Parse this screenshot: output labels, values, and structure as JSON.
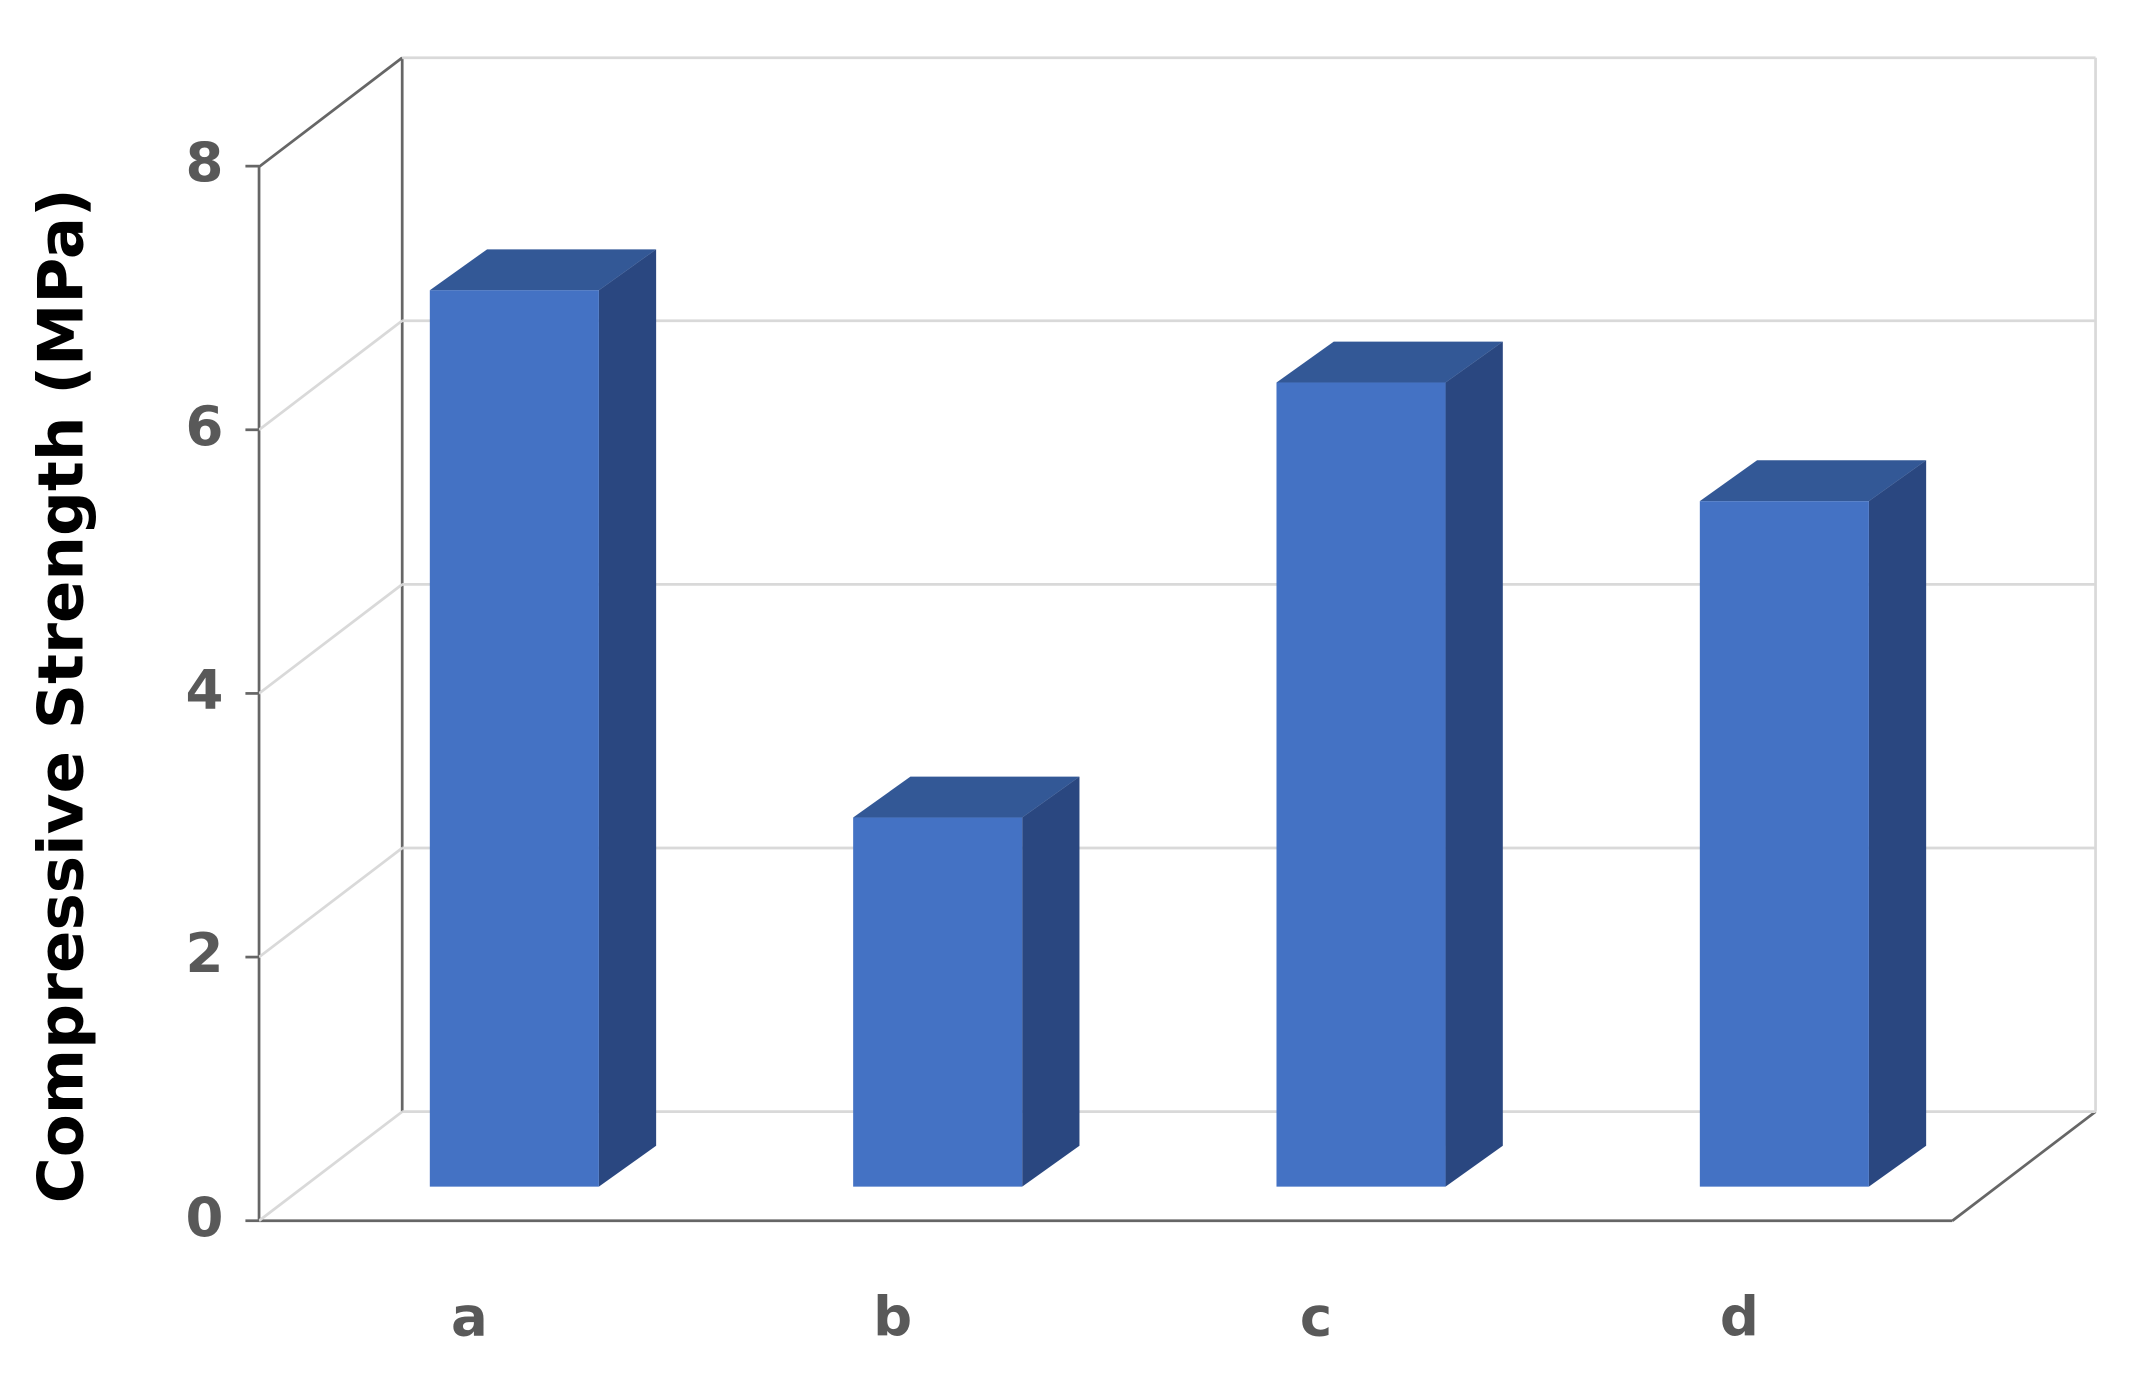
{
  "chart_data": {
    "type": "bar",
    "ylabel": "Compressive Strength (MPa)",
    "categories": [
      "a",
      "b",
      "c",
      "d"
    ],
    "values": [
      6.8,
      2.8,
      6.1,
      5.2
    ],
    "color": "#4472c4",
    "ylim": [
      0,
      8
    ],
    "yticks": [
      0,
      2,
      4,
      6,
      8
    ],
    "grid": true
  }
}
